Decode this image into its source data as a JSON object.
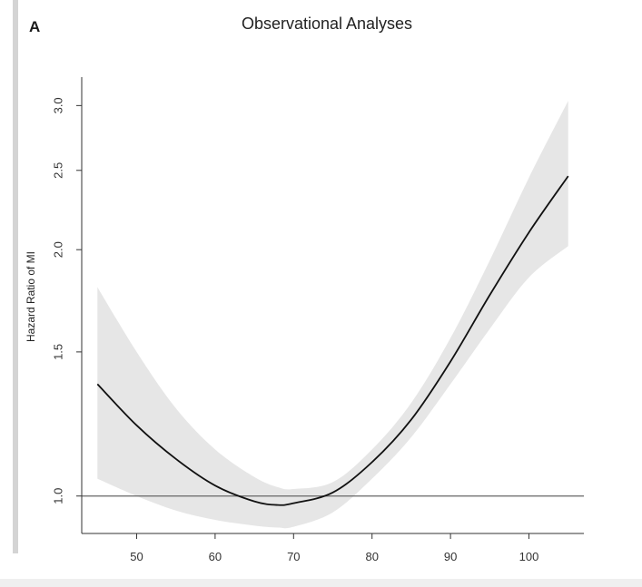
{
  "panel_label": "A",
  "chart_data": {
    "type": "line",
    "title": "Observational Analyses",
    "xlabel": "",
    "ylabel": "Hazard Ratio of MI",
    "y_scale": "log",
    "xlim": [
      43,
      107
    ],
    "ylim": [
      0.9,
      3.25
    ],
    "x_ticks": [
      50,
      60,
      70,
      80,
      90,
      100
    ],
    "x_tick_labels": [
      "50",
      "60",
      "70",
      "80",
      "90",
      "100"
    ],
    "y_ticks": [
      1.0,
      1.5,
      2.0,
      2.5,
      3.0
    ],
    "y_tick_labels": [
      "1.0",
      "1.5",
      "2.0",
      "2.5",
      "3.0"
    ],
    "reference_line": 1.0,
    "grid": false,
    "legend": "none",
    "series": [
      {
        "x": [
          45,
          50,
          55,
          60,
          65,
          68,
          70,
          75,
          80,
          85,
          90,
          95,
          100,
          105
        ],
        "y": [
          1.37,
          1.22,
          1.11,
          1.03,
          0.985,
          0.975,
          0.98,
          1.01,
          1.1,
          1.24,
          1.46,
          1.76,
          2.1,
          2.46
        ],
        "lower": [
          1.05,
          1.0,
          0.96,
          0.935,
          0.92,
          0.915,
          0.917,
          0.955,
          1.05,
          1.18,
          1.37,
          1.6,
          1.85,
          2.02
        ],
        "upper": [
          1.8,
          1.5,
          1.28,
          1.14,
          1.055,
          1.025,
          1.02,
          1.04,
          1.14,
          1.3,
          1.56,
          1.94,
          2.45,
          3.04
        ]
      }
    ],
    "colors": {
      "line": "#111111",
      "band": "#e6e6e6",
      "reference": "#666666",
      "axis": "#333333"
    }
  }
}
